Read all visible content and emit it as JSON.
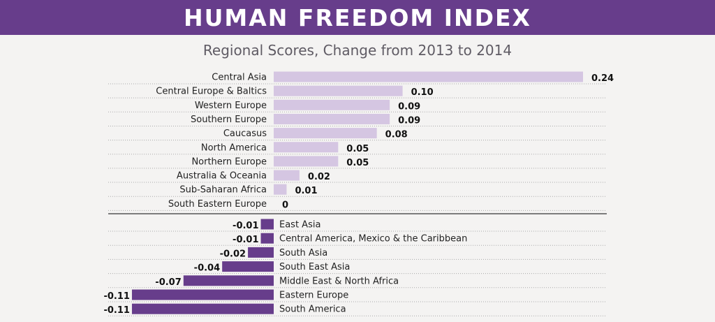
{
  "header": {
    "title": "HUMAN FREEDOM INDEX"
  },
  "colors": {
    "header_bg": "#673d8b",
    "positive_bar": "#d5c6e2",
    "negative_bar": "#673d8b",
    "background": "#f4f3f2"
  },
  "chart_data": {
    "type": "bar",
    "orientation": "horizontal",
    "title": "Regional Scores, Change from 2013 to 2014",
    "xlabel": "",
    "ylabel": "",
    "xlim": [
      -0.11,
      0.24
    ],
    "grid": "dotted row separators",
    "categories": [
      "Central Asia",
      "Central Europe & Baltics",
      "Western Europe",
      "Southern Europe",
      "Caucasus",
      "North America",
      "Northern Europe",
      "Australia & Oceania",
      "Sub-Saharan Africa",
      "South Eastern Europe",
      "East Asia",
      "Central America, Mexico & the Caribbean",
      "South Asia",
      "South East Asia",
      "Middle East & North Africa",
      "Eastern Europe",
      "South America"
    ],
    "values": [
      0.24,
      0.1,
      0.09,
      0.09,
      0.08,
      0.05,
      0.05,
      0.02,
      0.01,
      0,
      -0.01,
      -0.01,
      -0.02,
      -0.04,
      -0.07,
      -0.11,
      -0.11
    ],
    "value_labels": [
      "0.24",
      "0.10",
      "0.09",
      "0.09",
      "0.08",
      "0.05",
      "0.05",
      "0.02",
      "0.01",
      "0",
      "-0.01",
      "-0.01",
      "-0.02",
      "-0.04",
      "-0.07",
      "-0.11",
      "-0.11"
    ]
  }
}
